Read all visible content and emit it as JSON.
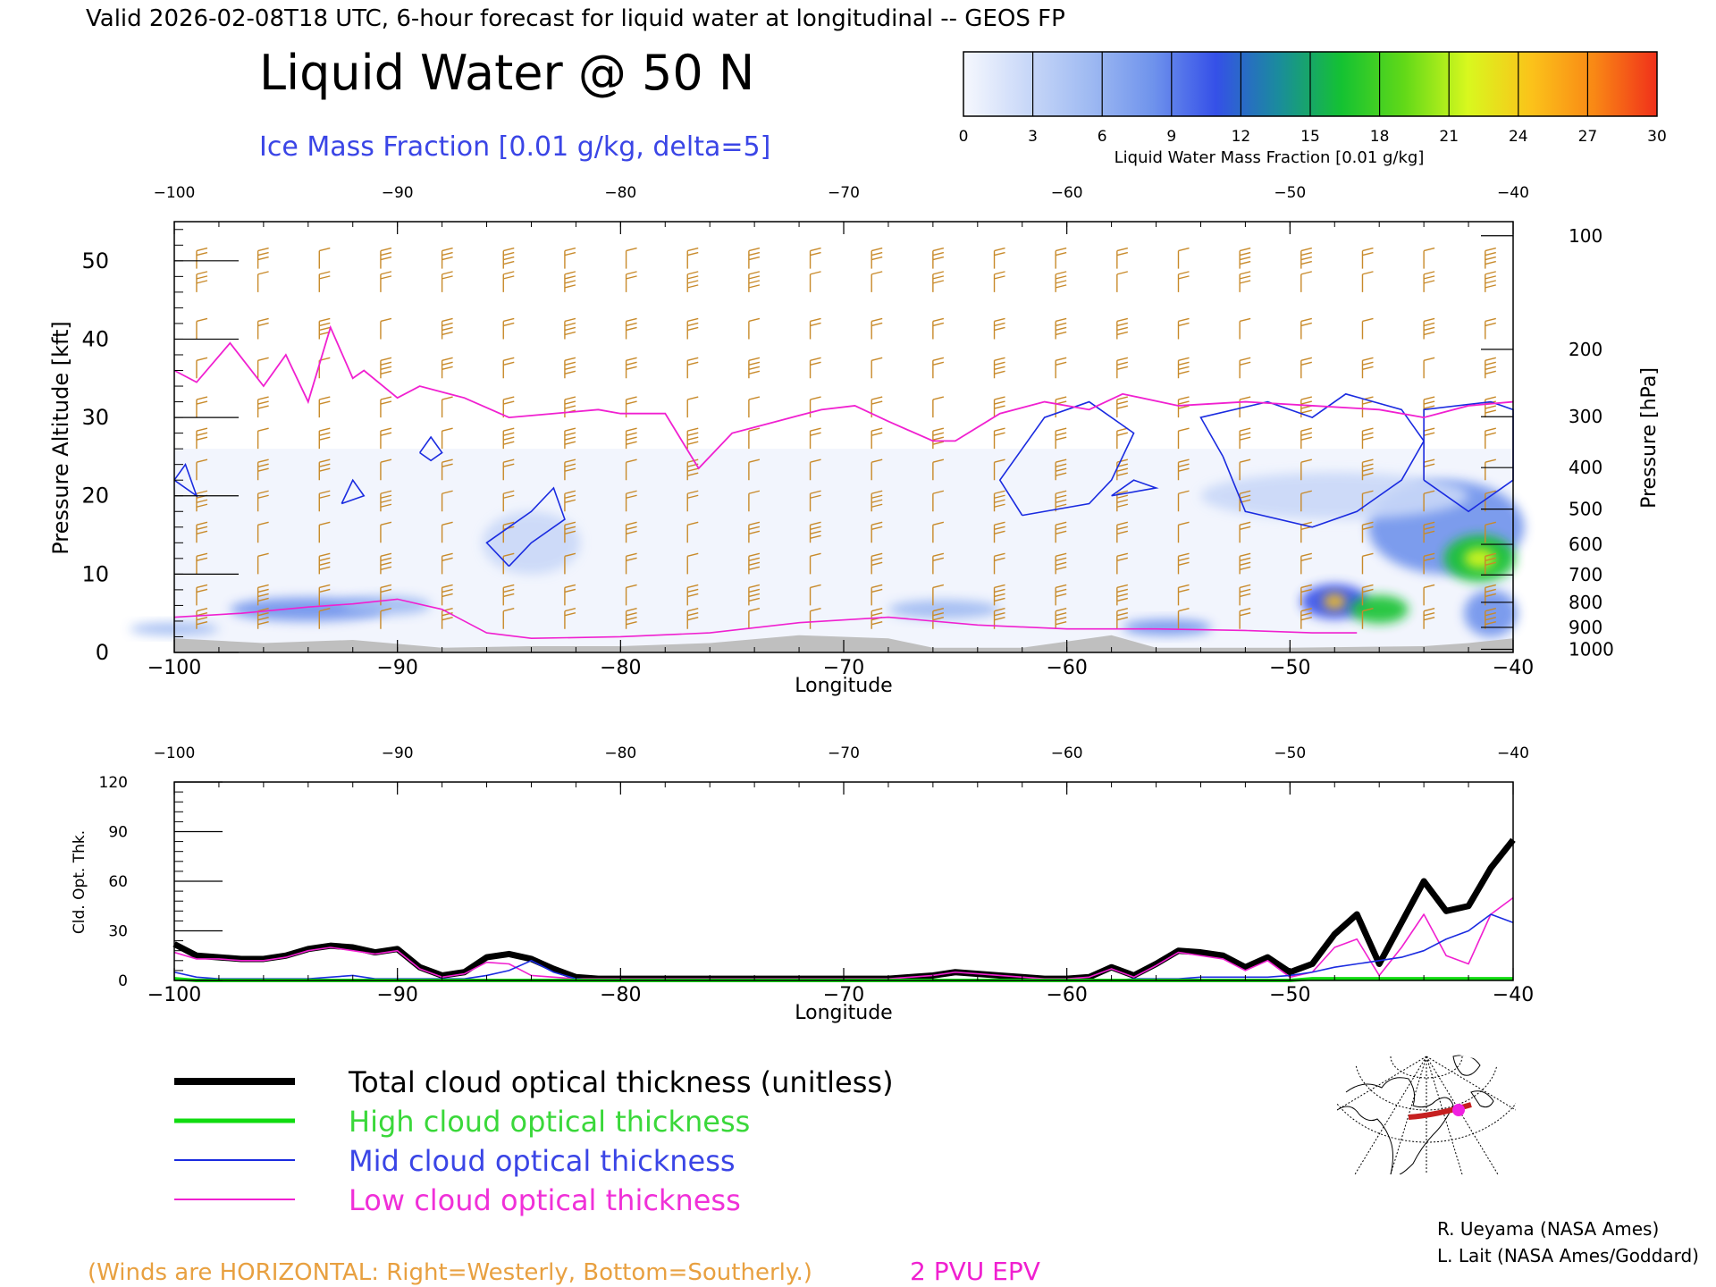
{
  "header": {
    "valid_line": "Valid 2026-02-08T18 UTC, 6-hour forecast for liquid water at longitudinal -- GEOS FP",
    "title": "Liquid Water @ 50 N",
    "subtitle": "Ice Mass Fraction [0.01 g/kg, delta=5]"
  },
  "colorbar": {
    "label": "Liquid Water Mass Fraction [0.01 g/kg]",
    "ticks": [
      "0",
      "3",
      "6",
      "9",
      "12",
      "15",
      "18",
      "21",
      "24",
      "27",
      "30"
    ],
    "colors": [
      "#f6f8fe",
      "#c9d8f8",
      "#9fbaf2",
      "#6f93ec",
      "#3550e8",
      "#1a8c9c",
      "#14c232",
      "#62d918",
      "#d8f81e",
      "#fbc31a",
      "#f98815",
      "#f0301a"
    ]
  },
  "chart_data": [
    {
      "type": "heatmap",
      "title": "Liquid Water @ 50 N",
      "xlabel": "Longitude",
      "ylabel": "Pressure Altitude [kft]",
      "ylabel_right": "Pressure [hPa]",
      "xlim": [
        -100,
        -40
      ],
      "ylim": [
        0,
        55
      ],
      "x_ticks": [
        "-100",
        "-90",
        "-80",
        "-70",
        "-60",
        "-50",
        "-40"
      ],
      "top_x_ticks": [
        "-100",
        "-90",
        "-80",
        "-70",
        "-60",
        "-50",
        "-40"
      ],
      "y_ticks": [
        "0",
        "10",
        "20",
        "30",
        "40",
        "50"
      ],
      "pressure_ticks": [
        {
          "label": "100",
          "kft": 53.2
        },
        {
          "label": "200",
          "kft": 38.7
        },
        {
          "label": "300",
          "kft": 30.1
        },
        {
          "label": "400",
          "kft": 23.6
        },
        {
          "label": "500",
          "kft": 18.3
        },
        {
          "label": "600",
          "kft": 13.8
        },
        {
          "label": "700",
          "kft": 9.9
        },
        {
          "label": "800",
          "kft": 6.4
        },
        {
          "label": "900",
          "kft": 3.2
        },
        {
          "label": "1000",
          "kft": 0.4
        }
      ],
      "liquid_water_blobs": [
        {
          "lon": -94,
          "kft": 5.5,
          "rlon": 3.5,
          "rkft": 1.5,
          "value": 8
        },
        {
          "lon": -90.5,
          "kft": 6,
          "rlon": 2,
          "rkft": 1.2,
          "value": 6
        },
        {
          "lon": -84,
          "kft": 14,
          "rlon": 2.2,
          "rkft": 4,
          "value": 4
        },
        {
          "lon": -65.5,
          "kft": 5.5,
          "rlon": 2.5,
          "rkft": 1.2,
          "value": 5
        },
        {
          "lon": -55.5,
          "kft": 3.2,
          "rlon": 2,
          "rkft": 1,
          "value": 9
        },
        {
          "lon": -48,
          "kft": 6.5,
          "rlon": 1.5,
          "rkft": 2.2,
          "value": 12
        },
        {
          "lon": -48,
          "kft": 6.5,
          "rlon": 0.5,
          "rkft": 1,
          "value": 24
        },
        {
          "lon": -46,
          "kft": 5.5,
          "rlon": 1.3,
          "rkft": 1.8,
          "value": 15
        },
        {
          "lon": -43,
          "kft": 16,
          "rlon": 3.5,
          "rkft": 6,
          "value": 8
        },
        {
          "lon": -41.5,
          "kft": 12,
          "rlon": 1.6,
          "rkft": 3,
          "value": 15
        },
        {
          "lon": -41.5,
          "kft": 12,
          "rlon": 0.7,
          "rkft": 1.3,
          "value": 21
        },
        {
          "lon": -41,
          "kft": 5,
          "rlon": 1.2,
          "rkft": 3,
          "value": 9
        },
        {
          "lon": -48,
          "kft": 20,
          "rlon": 6,
          "rkft": 3,
          "value": 3
        },
        {
          "lon": -100,
          "kft": 3,
          "rlon": 2,
          "rkft": 0.8,
          "value": 6
        }
      ],
      "epv_2pvu_line": {
        "lon": [
          -100,
          -99,
          -97.5,
          -96,
          -95,
          -94,
          -93,
          -92,
          -91.5,
          -90,
          -89,
          -87,
          -85,
          -83,
          -81,
          -80,
          -78,
          -76.5,
          -75,
          -73,
          -71,
          -69.5,
          -68,
          -66,
          -65,
          -63,
          -61,
          -59,
          -57.5,
          -55,
          -52,
          -49,
          -46,
          -44,
          -42,
          -40
        ],
        "kft": [
          36,
          34.5,
          39.5,
          34,
          38,
          32,
          41.5,
          35,
          36,
          32.5,
          34,
          32.5,
          30,
          30.5,
          31,
          30.5,
          30.5,
          23.5,
          28,
          29.5,
          31,
          31.5,
          29.5,
          27,
          27,
          30.5,
          32,
          31,
          33,
          31.5,
          32,
          31.5,
          31,
          30,
          31.5,
          32
        ]
      },
      "epv_low_line": {
        "lon": [
          -100,
          -97,
          -94,
          -92,
          -90,
          -88,
          -86,
          -84,
          -80,
          -76,
          -72,
          -68,
          -64,
          -60,
          -56,
          -52,
          -49,
          -47
        ],
        "kft": [
          4.5,
          5,
          5.8,
          6.2,
          6.8,
          5.5,
          2.5,
          1.8,
          2,
          2.5,
          3.8,
          4.5,
          3.5,
          3,
          3,
          2.8,
          2.5,
          2.5
        ]
      },
      "wind_note": "(Winds are HORIZONTAL: Right=Westerly, Bottom=Southerly.)",
      "epv_label": "2 PVU EPV"
    },
    {
      "type": "line",
      "ylabel": "Cld. Opt. Thk.",
      "xlabel": "Longitude",
      "xlim": [
        -100,
        -40
      ],
      "ylim": [
        0,
        120
      ],
      "x_ticks": [
        "-100",
        "-90",
        "-80",
        "-70",
        "-60",
        "-50",
        "-40"
      ],
      "top_x_ticks": [
        "-100",
        "-90",
        "-80",
        "-70",
        "-60",
        "-50",
        "-40"
      ],
      "y_ticks": [
        "0",
        "30",
        "60",
        "90",
        "120"
      ],
      "x": [
        -100,
        -99,
        -98,
        -97,
        -96,
        -95,
        -94,
        -93,
        -92,
        -91,
        -90,
        -89,
        -88,
        -87,
        -86,
        -85,
        -84,
        -83,
        -82,
        -81,
        -80,
        -79,
        -78,
        -77,
        -76,
        -75,
        -74,
        -73,
        -72,
        -71,
        -70,
        -69,
        -68,
        -67,
        -66,
        -65,
        -64,
        -63,
        -62,
        -61,
        -60,
        -59,
        -58,
        -57,
        -56,
        -55,
        -54,
        -53,
        -52,
        -51,
        -50,
        -49,
        -48,
        -47,
        -46,
        -45,
        -44,
        -43,
        -42,
        -41,
        -40
      ],
      "series": [
        {
          "name": "Total cloud optical thickness (unitless)",
          "color": "#000000",
          "values": [
            22,
            15,
            14,
            13,
            13,
            15,
            19,
            21,
            20,
            17,
            19,
            8,
            3,
            5,
            14,
            16,
            13,
            7,
            2,
            1,
            1,
            1,
            1,
            1,
            1,
            1,
            1,
            1,
            1,
            1,
            1,
            1,
            1,
            2,
            3,
            5,
            4,
            3,
            2,
            1,
            1,
            2,
            8,
            3,
            10,
            18,
            17,
            15,
            8,
            14,
            5,
            10,
            28,
            40,
            10,
            35,
            60,
            42,
            45,
            68,
            85
          ]
        },
        {
          "name": "High cloud optical thickness",
          "color": "#10dc10",
          "values": [
            1,
            0,
            0,
            0,
            0,
            0,
            0,
            0,
            0,
            0,
            0,
            0,
            0,
            0,
            0,
            0,
            0,
            0,
            0,
            0,
            0,
            0,
            0,
            0,
            0,
            0,
            0,
            0,
            0,
            0,
            0,
            0,
            0,
            0,
            0,
            0,
            0,
            0,
            0,
            0,
            0,
            0,
            0,
            0,
            0,
            0,
            0,
            0,
            0,
            0,
            0,
            1,
            1,
            1,
            1,
            1,
            1,
            1,
            1,
            1,
            1
          ]
        },
        {
          "name": "Mid cloud optical thickness",
          "color": "#1a2be0",
          "values": [
            5,
            2,
            1,
            1,
            1,
            1,
            1,
            2,
            3,
            1,
            1,
            1,
            1,
            1,
            3,
            6,
            12,
            5,
            1,
            0,
            0,
            0,
            0,
            0,
            0,
            0,
            0,
            0,
            0,
            0,
            0,
            0,
            0,
            0,
            0,
            0,
            0,
            0,
            0,
            0,
            0,
            0,
            0,
            1,
            1,
            1,
            2,
            2,
            2,
            2,
            3,
            5,
            8,
            10,
            12,
            14,
            18,
            25,
            30,
            40,
            35
          ]
        },
        {
          "name": "Low cloud optical thickness",
          "color": "#f020d0",
          "values": [
            17,
            13,
            13,
            12,
            12,
            14,
            18,
            20,
            18,
            16,
            18,
            7,
            2,
            4,
            11,
            10,
            3,
            2,
            1,
            1,
            1,
            1,
            1,
            1,
            1,
            1,
            1,
            1,
            1,
            1,
            1,
            1,
            1,
            2,
            3,
            5,
            4,
            3,
            2,
            1,
            1,
            2,
            7,
            2,
            9,
            17,
            15,
            13,
            6,
            12,
            2,
            5,
            20,
            25,
            3,
            20,
            40,
            15,
            10,
            40,
            50
          ]
        }
      ]
    }
  ],
  "inset_map": {
    "name": "location-map"
  },
  "credits": {
    "line1": "R. Ueyama (NASA Ames)",
    "line2": "L. Lait (NASA Ames/Goddard)"
  }
}
